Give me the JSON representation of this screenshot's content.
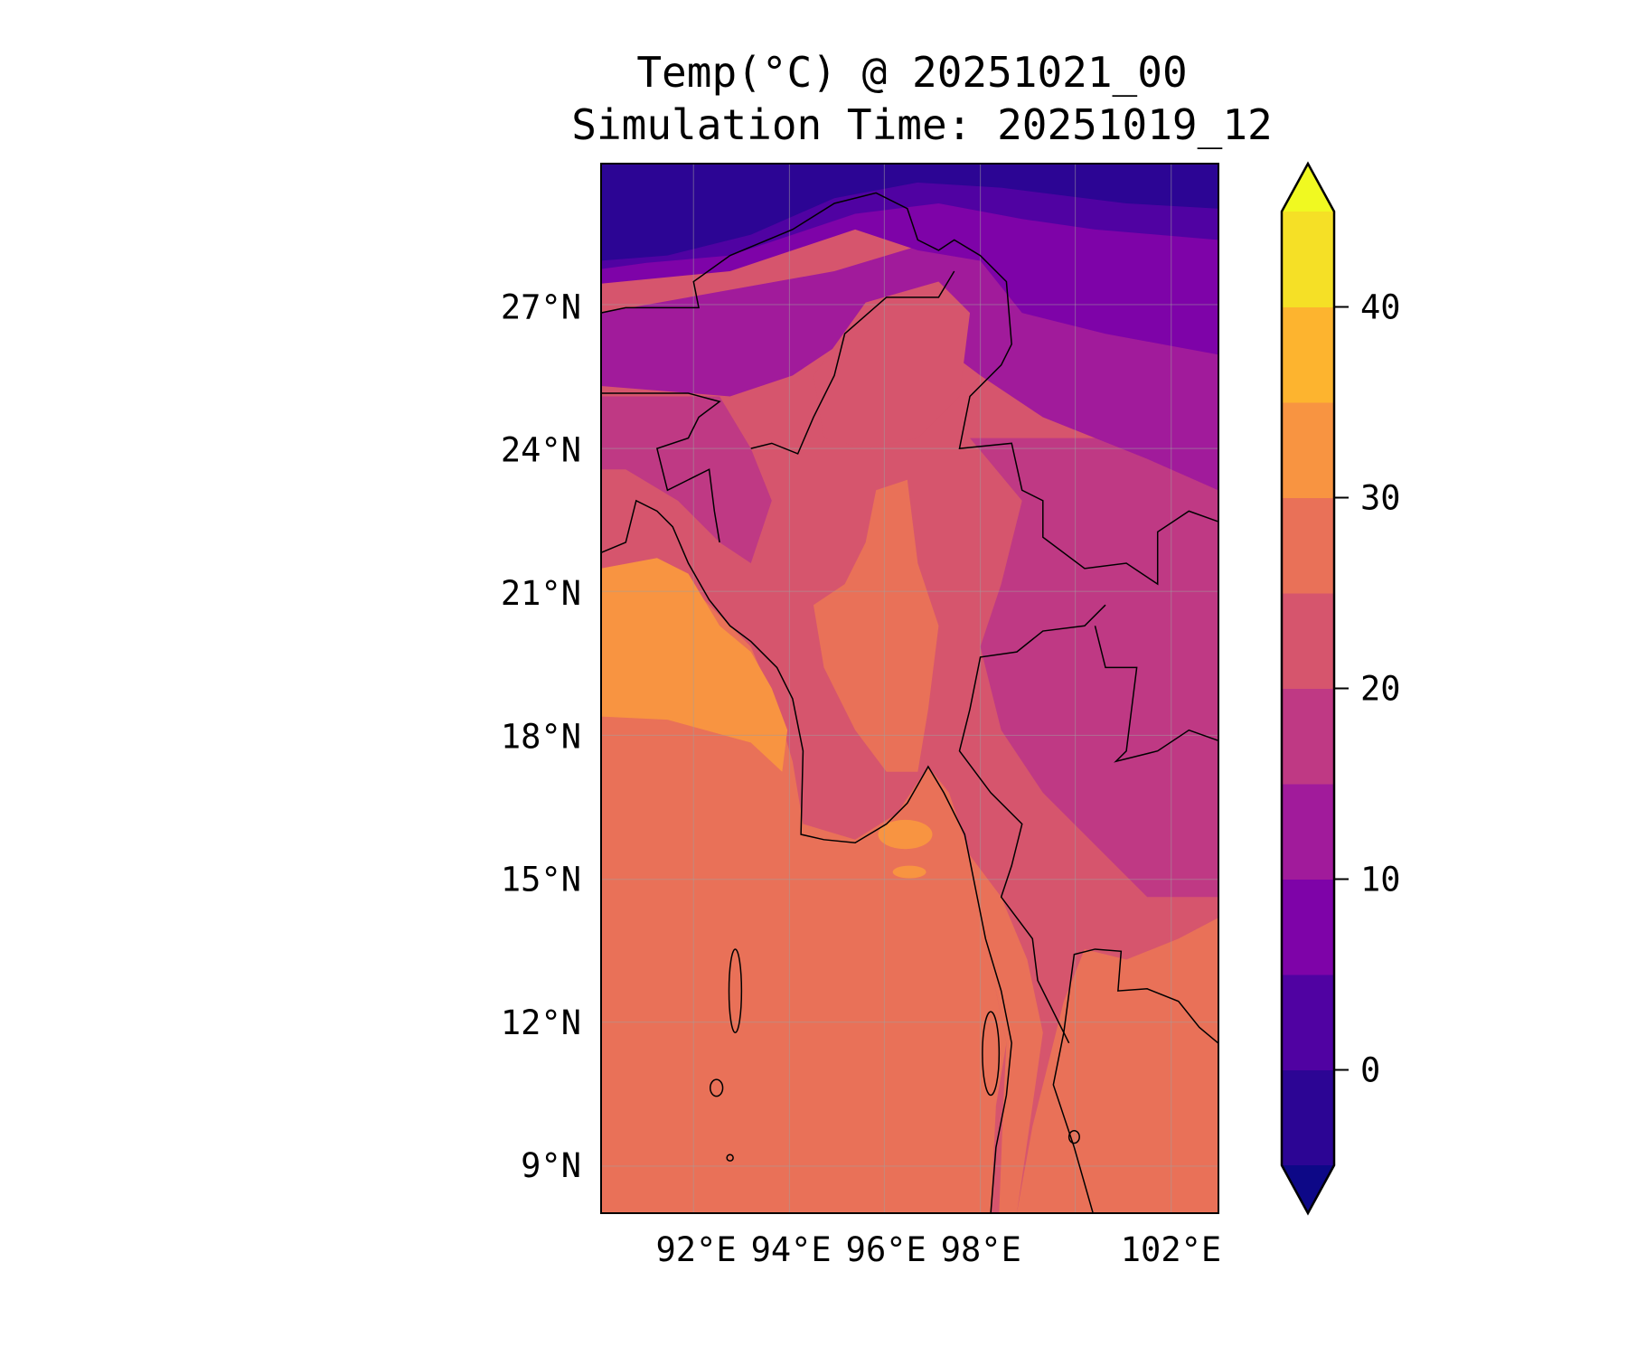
{
  "chart_data": {
    "type": "contour",
    "title": "Temp(°C) @ 20251021_00",
    "subtitle": "Simulation Time: 20251019_12",
    "xlabel": "",
    "ylabel": "",
    "xlim": [
      90,
      103
    ],
    "ylim": [
      8,
      30
    ],
    "grid": true,
    "x_ticks": [
      {
        "value": 92,
        "label": "92°E"
      },
      {
        "value": 94,
        "label": "94°E"
      },
      {
        "value": 96,
        "label": "96°E"
      },
      {
        "value": 98,
        "label": "98°E"
      },
      {
        "value": 102,
        "label": "102°E"
      }
    ],
    "y_ticks": [
      {
        "value": 27,
        "label": "27°N"
      },
      {
        "value": 24,
        "label": "24°N"
      },
      {
        "value": 21,
        "label": "21°N"
      },
      {
        "value": 18,
        "label": "18°N"
      },
      {
        "value": 15,
        "label": "15°N"
      },
      {
        "value": 12,
        "label": "12°N"
      },
      {
        "value": 9,
        "label": "9°N"
      }
    ],
    "colorbar": {
      "levels": [
        -5,
        0,
        5,
        10,
        15,
        20,
        25,
        30,
        35,
        40,
        45
      ],
      "colors": [
        "#2c0594",
        "#5002a2",
        "#7e03a8",
        "#a11b9b",
        "#bf3984",
        "#d6556d",
        "#e97158",
        "#f89441",
        "#fdb42f",
        "#f5e026"
      ],
      "under_color": "#0d0887",
      "over_color": "#f0f921",
      "extend": "both",
      "ticks": [
        {
          "value": 0,
          "label": "0"
        },
        {
          "value": 10,
          "label": "10"
        },
        {
          "value": 20,
          "label": "20"
        },
        {
          "value": 30,
          "label": "30"
        },
        {
          "value": 40,
          "label": "40"
        }
      ]
    },
    "field_summary": "Temperature lowest (below 0°C) over the Himalaya/Tibet in the north, 5-20°C over the northern and eastern highlands, 20-25°C over central Myanmar and Thailand land, 25-30°C over the Andaman Sea and southern land, 30-35°C over the northeastern Bay of Bengal."
  }
}
